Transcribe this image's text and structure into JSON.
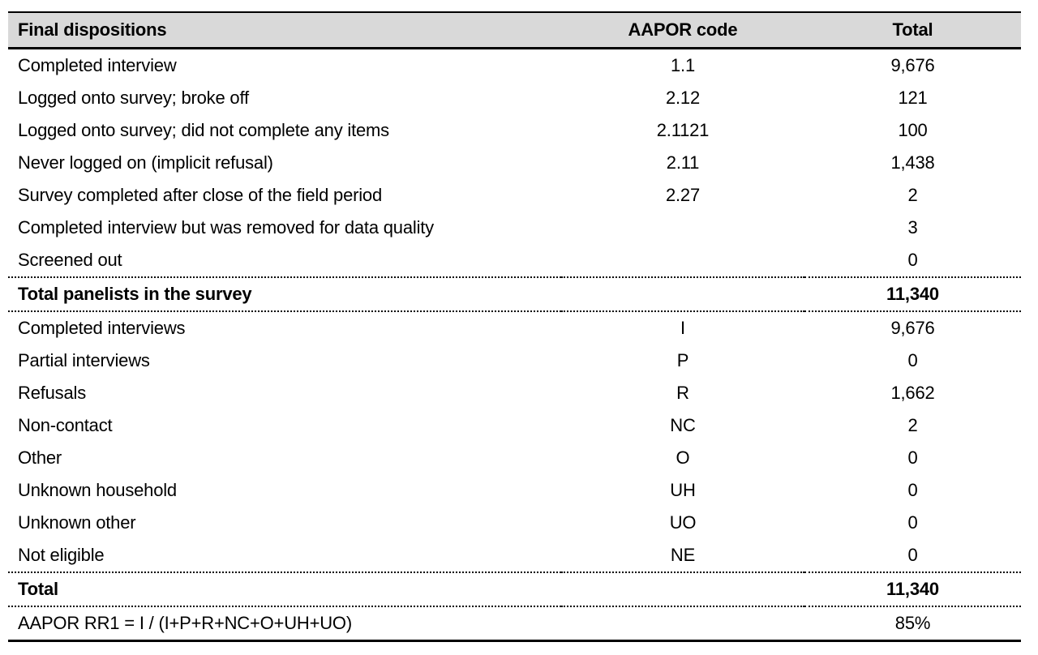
{
  "page": {
    "background_color": "#ffffff",
    "text_color": "#000000"
  },
  "table": {
    "header_bg_color": "#d9d9d9",
    "border_color": "#000000",
    "columns": [
      "Final dispositions",
      "AAPOR code",
      "Total"
    ],
    "rows": [
      {
        "label": "Completed interview",
        "code": "1.1",
        "total": "9,676",
        "bold": false,
        "sep_above": false
      },
      {
        "label": "Logged onto survey; broke off",
        "code": "2.12",
        "total": "121",
        "bold": false,
        "sep_above": false
      },
      {
        "label": "Logged onto survey; did not complete any items",
        "code": "2.1121",
        "total": "100",
        "bold": false,
        "sep_above": false
      },
      {
        "label": "Never logged on (implicit refusal)",
        "code": "2.11",
        "total": "1,438",
        "bold": false,
        "sep_above": false
      },
      {
        "label": "Survey completed after close of the field period",
        "code": "2.27",
        "total": "2",
        "bold": false,
        "sep_above": false
      },
      {
        "label": "Completed interview but was removed for data quality",
        "code": "",
        "total": "3",
        "bold": false,
        "sep_above": false
      },
      {
        "label": "Screened out",
        "code": "",
        "total": "0",
        "bold": false,
        "sep_above": false
      },
      {
        "label": "Total panelists in the survey",
        "code": "",
        "total": "11,340",
        "bold": true,
        "sep_above": true
      },
      {
        "label": "Completed interviews",
        "code": "I",
        "total": "9,676",
        "bold": false,
        "sep_above": true
      },
      {
        "label": "Partial interviews",
        "code": "P",
        "total": "0",
        "bold": false,
        "sep_above": false
      },
      {
        "label": "Refusals",
        "code": "R",
        "total": "1,662",
        "bold": false,
        "sep_above": false
      },
      {
        "label": "Non-contact",
        "code": "NC",
        "total": "2",
        "bold": false,
        "sep_above": false
      },
      {
        "label": "Other",
        "code": "O",
        "total": "0",
        "bold": false,
        "sep_above": false
      },
      {
        "label": "Unknown household",
        "code": "UH",
        "total": "0",
        "bold": false,
        "sep_above": false
      },
      {
        "label": "Unknown other",
        "code": "UO",
        "total": "0",
        "bold": false,
        "sep_above": false
      },
      {
        "label": "Not eligible",
        "code": "NE",
        "total": "0",
        "bold": false,
        "sep_above": false
      },
      {
        "label": "Total",
        "code": "",
        "total": "11,340",
        "bold": true,
        "sep_above": true
      },
      {
        "label": "AAPOR RR1 = I / (I+P+R+NC+O+UH+UO)",
        "code": "",
        "total": "85%",
        "bold": false,
        "sep_above": true
      }
    ]
  }
}
